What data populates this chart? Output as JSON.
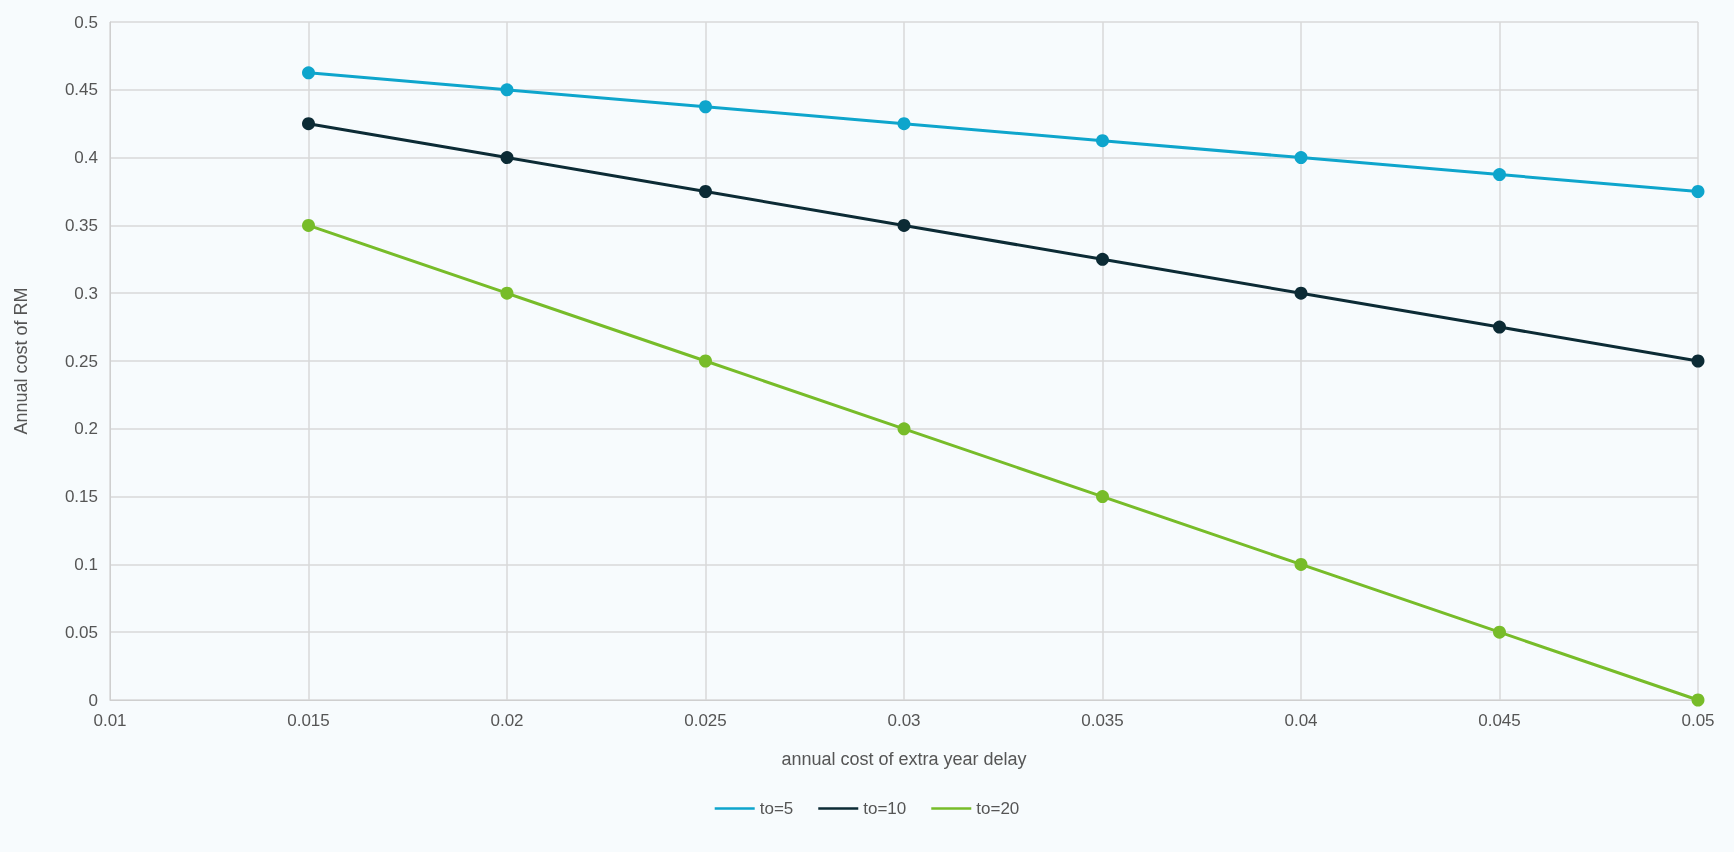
{
  "chart_data": {
    "type": "line",
    "xlabel": "annual cost of extra year delay",
    "ylabel": "Annual cost of RM",
    "x": [
      0.015,
      0.02,
      0.025,
      0.03,
      0.035,
      0.04,
      0.045,
      0.05
    ],
    "series": [
      {
        "name": "to=5",
        "color": "#0ea5cc",
        "values": [
          0.4625,
          0.45,
          0.4375,
          0.425,
          0.4125,
          0.4,
          0.3875,
          0.375
        ]
      },
      {
        "name": "to=10",
        "color": "#0c2b35",
        "values": [
          0.425,
          0.4,
          0.375,
          0.35,
          0.325,
          0.3,
          0.275,
          0.25
        ]
      },
      {
        "name": "to=20",
        "color": "#77bc29",
        "values": [
          0.35,
          0.3,
          0.25,
          0.2,
          0.15,
          0.1,
          0.05,
          0
        ]
      }
    ],
    "xlim": [
      0.01,
      0.05
    ],
    "xticks": [
      0.01,
      0.015,
      0.02,
      0.025,
      0.03,
      0.035,
      0.04,
      0.045,
      0.05
    ],
    "ylim": [
      0,
      0.5
    ],
    "yticks": [
      0,
      0.05,
      0.1,
      0.15,
      0.2,
      0.25,
      0.3,
      0.35,
      0.4,
      0.45,
      0.5
    ],
    "grid": true,
    "legend": "bottom",
    "marker": "circle",
    "line_style": "solid"
  }
}
